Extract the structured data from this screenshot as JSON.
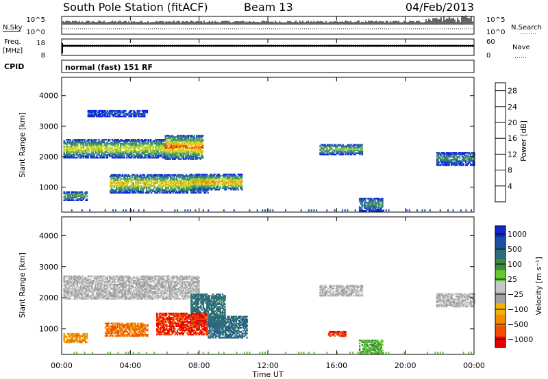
{
  "header": {
    "station": "South Pole Station (fitACF)",
    "beam": "Beam 13",
    "date": "04/Feb/2013"
  },
  "top_panels": {
    "nsky_label": "N.Sky",
    "nsearch_label": "N.Search",
    "nsky_ticks": [
      "10^5",
      "10^0"
    ],
    "nsearch_ticks": [
      "10^5",
      "10^0"
    ],
    "freq_label_line1": "Freq.",
    "freq_label_line2": "[MHz]",
    "freq_ticks": [
      "18",
      "8"
    ],
    "nave_label": "Nave",
    "nave_ticks": [
      "60",
      "0"
    ],
    "cpid_label": "CPID",
    "cpid_value": "normal (fast) 151 RF"
  },
  "colors": {
    "power": [
      "#0a1ef0",
      "#1e50b4",
      "#2d6ea0",
      "#3c8c6e",
      "#50a050",
      "#8cc83c",
      "#c8dc28",
      "#f0c814",
      "#f08c0a",
      "#f05a0a",
      "#e61e0a",
      "#dc0000"
    ],
    "velocity": [
      "#e60000",
      "#f05000",
      "#f08c00",
      "#f0b400",
      "#a0a0a0",
      "#c8c8c8",
      "#64c832",
      "#3c8c3c",
      "#2d6e7a",
      "#1e4ea0",
      "#1428c8"
    ]
  },
  "chart_data": [
    {
      "type": "heatmap",
      "name": "Power",
      "xlabel": "Time UT",
      "ylabel": "Slant Range [km]",
      "xticks": [
        "00:00",
        "04:00",
        "08:00",
        "12:00",
        "16:00",
        "20:00",
        "00:00"
      ],
      "xlim_hours": [
        0,
        24
      ],
      "yticks": [
        "1000",
        "2000",
        "3000",
        "4000"
      ],
      "ylim_km": [
        180,
        4600
      ],
      "colorbar": {
        "label": "Power [dB]",
        "ticks": [
          "4",
          "8",
          "12",
          "16",
          "20",
          "24",
          "28"
        ],
        "range": [
          0,
          30
        ]
      },
      "regions": [
        {
          "t": [
            0.1,
            6.0
          ],
          "r": [
            1950,
            2550
          ],
          "peak": 18
        },
        {
          "t": [
            6.0,
            8.2
          ],
          "r": [
            1900,
            2700
          ],
          "peak": 24
        },
        {
          "t": [
            2.8,
            8.5
          ],
          "r": [
            800,
            1400
          ],
          "peak": 20
        },
        {
          "t": [
            7.5,
            10.5
          ],
          "r": [
            900,
            1400
          ],
          "peak": 22
        },
        {
          "t": [
            0.1,
            1.5
          ],
          "r": [
            550,
            850
          ],
          "peak": 12
        },
        {
          "t": [
            15.0,
            17.5
          ],
          "r": [
            2050,
            2400
          ],
          "peak": 14
        },
        {
          "t": [
            17.3,
            18.7
          ],
          "r": [
            200,
            650
          ],
          "peak": 10
        },
        {
          "t": [
            21.8,
            24.0
          ],
          "r": [
            1700,
            2150
          ],
          "peak": 9
        },
        {
          "t": [
            1.5,
            5.0
          ],
          "r": [
            3300,
            3500
          ],
          "peak": 5
        }
      ]
    },
    {
      "type": "heatmap",
      "name": "Velocity",
      "xlabel": "Time UT",
      "ylabel": "Slant Range [km]",
      "xticks": [
        "00:00",
        "04:00",
        "08:00",
        "12:00",
        "16:00",
        "20:00",
        "00:00"
      ],
      "xlim_hours": [
        0,
        24
      ],
      "yticks": [
        "1000",
        "2000",
        "3000",
        "4000"
      ],
      "ylim_km": [
        180,
        4600
      ],
      "colorbar": {
        "label": "Velocity [m s⁻¹]",
        "ticks": [
          "1000",
          "500",
          "100",
          "25",
          "−25",
          "−100",
          "−500",
          "−1000"
        ],
        "range": [
          -1000,
          1000
        ]
      },
      "regions": [
        {
          "t": [
            0.1,
            8.0
          ],
          "r": [
            1950,
            2700
          ],
          "v": 0
        },
        {
          "t": [
            7.5,
            9.5
          ],
          "r": [
            1100,
            2100
          ],
          "v": 150
        },
        {
          "t": [
            8.5,
            10.8
          ],
          "r": [
            700,
            1400
          ],
          "v": 200
        },
        {
          "t": [
            5.5,
            8.5
          ],
          "r": [
            800,
            1500
          ],
          "v": -500
        },
        {
          "t": [
            2.5,
            5.0
          ],
          "r": [
            750,
            1200
          ],
          "v": -200
        },
        {
          "t": [
            0.1,
            1.5
          ],
          "r": [
            550,
            850
          ],
          "v": -150
        },
        {
          "t": [
            15.0,
            17.5
          ],
          "r": [
            2050,
            2400
          ],
          "v": 0
        },
        {
          "t": [
            17.3,
            18.7
          ],
          "r": [
            200,
            650
          ],
          "v": 60
        },
        {
          "t": [
            21.8,
            24.0
          ],
          "r": [
            1700,
            2150
          ],
          "v": 0
        },
        {
          "t": [
            15.5,
            16.5
          ],
          "r": [
            750,
            900
          ],
          "v": -500
        }
      ]
    }
  ]
}
